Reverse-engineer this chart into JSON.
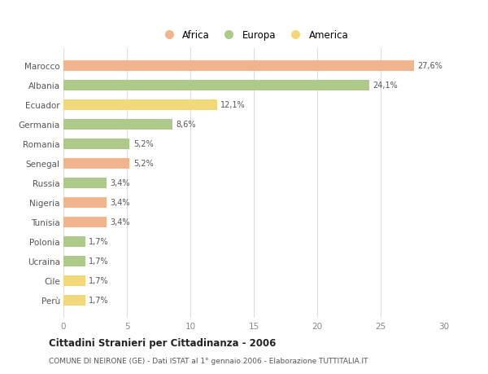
{
  "categories": [
    "Marocco",
    "Albania",
    "Ecuador",
    "Germania",
    "Romania",
    "Senegal",
    "Russia",
    "Nigeria",
    "Tunisia",
    "Polonia",
    "Ucraina",
    "Cile",
    "Perù"
  ],
  "values": [
    27.6,
    24.1,
    12.1,
    8.6,
    5.2,
    5.2,
    3.4,
    3.4,
    3.4,
    1.7,
    1.7,
    1.7,
    1.7
  ],
  "labels": [
    "27,6%",
    "24,1%",
    "12,1%",
    "8,6%",
    "5,2%",
    "5,2%",
    "3,4%",
    "3,4%",
    "3,4%",
    "1,7%",
    "1,7%",
    "1,7%",
    "1,7%"
  ],
  "colors": [
    "#F2B48C",
    "#AECA8A",
    "#F2D878",
    "#AECA8A",
    "#AECA8A",
    "#F2B48C",
    "#AECA8A",
    "#F2B48C",
    "#F2B48C",
    "#AECA8A",
    "#AECA8A",
    "#F2D878",
    "#F2D878"
  ],
  "legend_colors": {
    "Africa": "#F2B48C",
    "Europa": "#AECA8A",
    "America": "#F2D878"
  },
  "title": "Cittadini Stranieri per Cittadinanza - 2006",
  "subtitle": "COMUNE DI NEIRONE (GE) - Dati ISTAT al 1° gennaio 2006 - Elaborazione TUTTITALIA.IT",
  "xlim": [
    0,
    30
  ],
  "xticks": [
    0,
    5,
    10,
    15,
    20,
    25,
    30
  ],
  "background_color": "#ffffff",
  "grid_color": "#dddddd",
  "bar_height": 0.55
}
